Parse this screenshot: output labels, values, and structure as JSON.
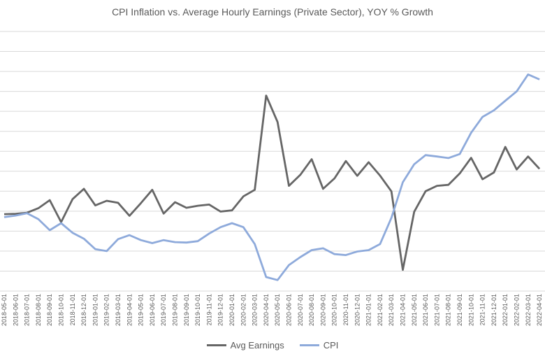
{
  "chart_data": {
    "type": "line",
    "title": "CPI Inflation vs. Average Hourly Earnings (Private Sector), YOY % Growth",
    "xlabel": "",
    "ylabel": "",
    "grid": true,
    "legend_position": "bottom",
    "x": [
      "2018-05-01",
      "2018-06-01",
      "2018-07-01",
      "2018-08-01",
      "2018-09-01",
      "2018-10-01",
      "2018-11-01",
      "2018-12-01",
      "2019-01-01",
      "2019-02-01",
      "2019-03-01",
      "2019-04-01",
      "2019-05-01",
      "2019-06-01",
      "2019-07-01",
      "2019-08-01",
      "2019-09-01",
      "2019-10-01",
      "2019-11-01",
      "2019-12-01",
      "2020-01-01",
      "2020-02-01",
      "2020-03-01",
      "2020-04-01",
      "2020-05-01",
      "2020-06-01",
      "2020-07-01",
      "2020-08-01",
      "2020-09-01",
      "2020-10-01",
      "2020-11-01",
      "2020-12-01",
      "2021-01-01",
      "2021-02-01",
      "2021-03-01",
      "2021-04-01",
      "2021-05-01",
      "2021-06-01",
      "2021-07-01",
      "2021-08-01",
      "2021-09-01",
      "2021-10-01",
      "2021-11-01",
      "2021-12-01",
      "2022-01-01",
      "2022-02-01",
      "2022-03-01",
      "2022-04-01"
    ],
    "series": [
      {
        "name": "Avg Earnings",
        "color": "#666666",
        "values": [
          0.85,
          0.87,
          0.92,
          1.15,
          1.55,
          0.45,
          1.6,
          2.12,
          1.29,
          1.52,
          1.42,
          0.77,
          1.4,
          2.07,
          0.88,
          1.45,
          1.17,
          1.27,
          1.33,
          0.98,
          1.04,
          1.74,
          2.07,
          6.79,
          5.47,
          2.27,
          2.82,
          3.6,
          2.12,
          2.64,
          3.51,
          2.77,
          3.45,
          2.78,
          1.99,
          -1.94,
          0.97,
          2.0,
          2.27,
          2.32,
          2.89,
          3.67,
          2.6,
          2.94,
          4.22,
          3.09,
          3.74,
          3.12
        ]
      },
      {
        "name": "CPI",
        "color": "#8eaadb",
        "values": [
          0.7,
          0.78,
          0.9,
          0.6,
          0.05,
          0.4,
          -0.08,
          -0.38,
          -0.9,
          -1.0,
          -0.4,
          -0.2,
          -0.45,
          -0.6,
          -0.45,
          -0.55,
          -0.57,
          -0.5,
          -0.12,
          0.2,
          0.4,
          0.2,
          -0.65,
          -2.3,
          -2.45,
          -1.7,
          -1.3,
          -0.95,
          -0.86,
          -1.15,
          -1.2,
          -1.02,
          -0.95,
          -0.65,
          0.67,
          2.45,
          3.35,
          3.81,
          3.74,
          3.66,
          3.86,
          4.93,
          5.72,
          6.05,
          6.53,
          7.0,
          7.85,
          7.6
        ]
      }
    ],
    "ylim": [
      -3,
      10
    ],
    "gridlines": [
      -3,
      -2,
      -1,
      0,
      1,
      2,
      3,
      4,
      5,
      6,
      7,
      8,
      9,
      10
    ]
  }
}
